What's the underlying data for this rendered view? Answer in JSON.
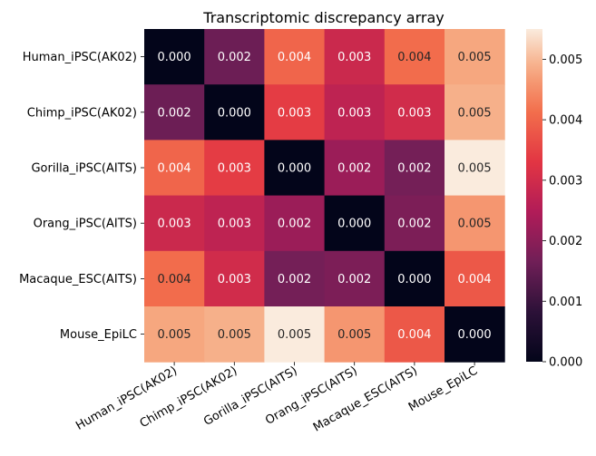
{
  "chart_data": {
    "type": "heatmap",
    "title": "Transcriptomic discrepancy array",
    "rows": [
      "Human_iPSC(AK02)",
      "Chimp_iPSC(AK02)",
      "Gorilla_iPSC(AITS)",
      "Orang_iPSC(AITS)",
      "Macaque_ESC(AITS)",
      "Mouse_EpiLC"
    ],
    "columns": [
      "Human_iPSC(AK02)",
      "Chimp_iPSC(AK02)",
      "Gorilla_iPSC(AITS)",
      "Orang_iPSC(AITS)",
      "Macaque_ESC(AITS)",
      "Mouse_EpiLC"
    ],
    "values": [
      [
        0.0,
        0.0016,
        0.004,
        0.0029,
        0.0041,
        0.0048
      ],
      [
        0.0016,
        0.0,
        0.0034,
        0.0027,
        0.003,
        0.0049
      ],
      [
        0.004,
        0.0034,
        0.0,
        0.0022,
        0.0017,
        0.0055
      ],
      [
        0.0029,
        0.0027,
        0.0022,
        0.0,
        0.0018,
        0.0046
      ],
      [
        0.0041,
        0.003,
        0.0017,
        0.0018,
        0.0,
        0.0038
      ],
      [
        0.0048,
        0.0049,
        0.0055,
        0.0046,
        0.0038,
        0.0
      ]
    ],
    "annotations": [
      [
        "0.000",
        "0.002",
        "0.004",
        "0.003",
        "0.004",
        "0.005"
      ],
      [
        "0.002",
        "0.000",
        "0.003",
        "0.003",
        "0.003",
        "0.005"
      ],
      [
        "0.004",
        "0.003",
        "0.000",
        "0.002",
        "0.002",
        "0.005"
      ],
      [
        "0.003",
        "0.003",
        "0.002",
        "0.000",
        "0.002",
        "0.005"
      ],
      [
        "0.004",
        "0.003",
        "0.002",
        "0.002",
        "0.000",
        "0.004"
      ],
      [
        "0.005",
        "0.005",
        "0.005",
        "0.005",
        "0.004",
        "0.000"
      ]
    ],
    "colorbar": {
      "colormap": "rocket",
      "range": [
        0.0,
        0.0055
      ],
      "ticks": [
        "0.000",
        "0.001",
        "0.002",
        "0.003",
        "0.004",
        "0.005"
      ],
      "tick_values": [
        0.0,
        0.001,
        0.002,
        0.003,
        0.004,
        0.005
      ],
      "placement": "right"
    },
    "grid": false
  }
}
